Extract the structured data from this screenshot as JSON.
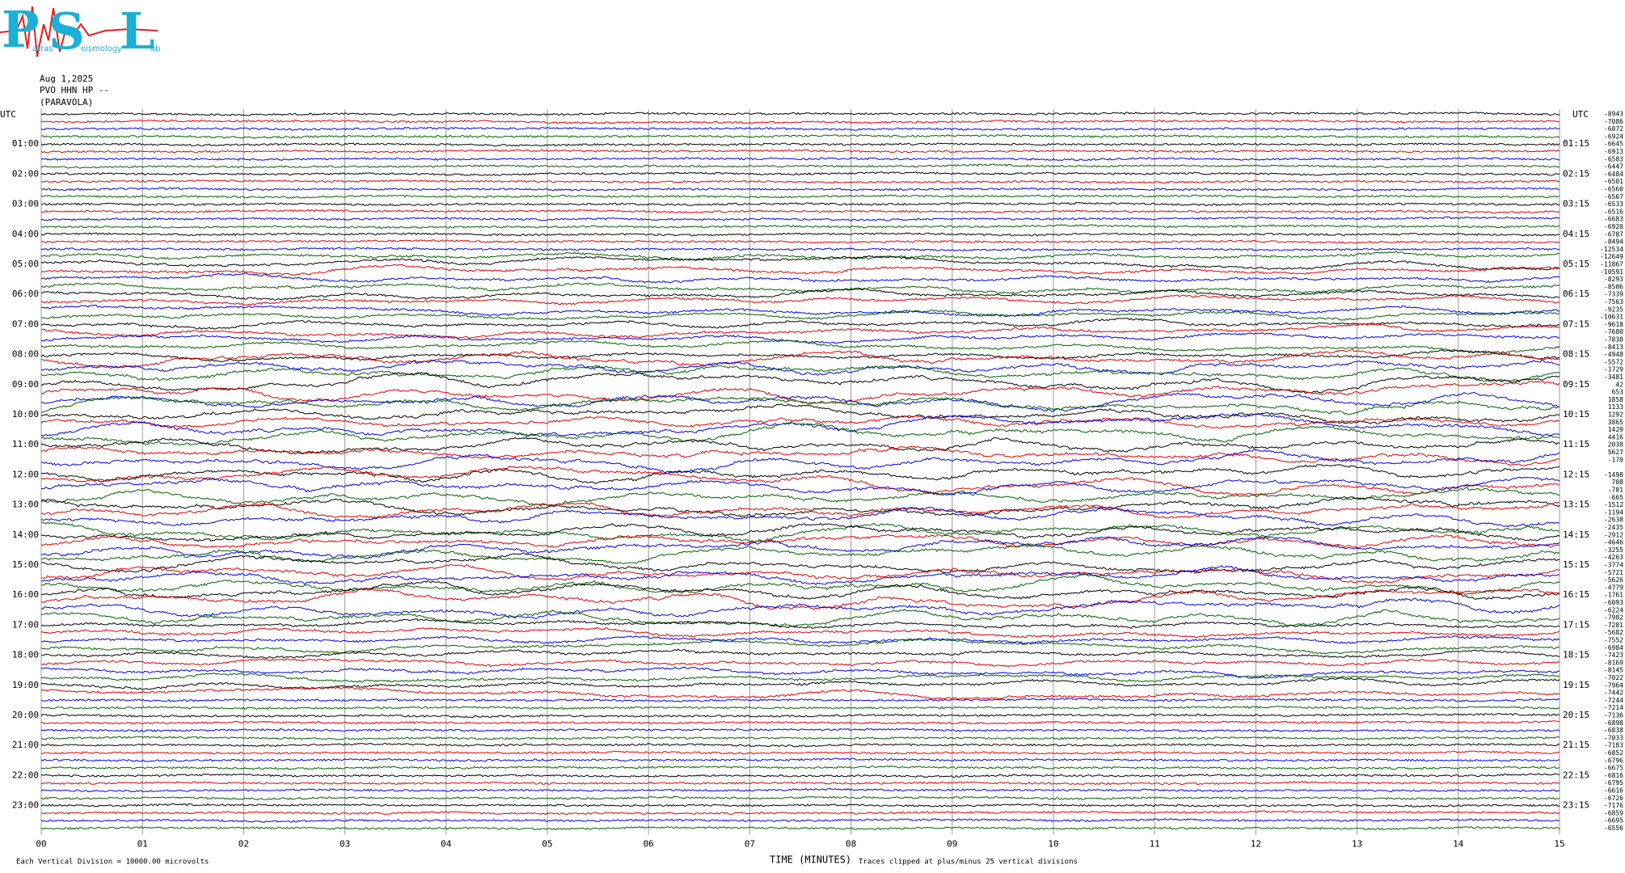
{
  "logo": {
    "letters": [
      "P",
      "S",
      "L"
    ],
    "words": [
      "atras",
      "eismology",
      "ab"
    ]
  },
  "header": {
    "date": "Aug 1,2025",
    "station": "PVO HHN HP --",
    "place": "(PARAVOLA)",
    "utc_left": "UTC",
    "utc_right": "UTC"
  },
  "left_labels": [
    "01:00",
    "02:00",
    "03:00",
    "04:00",
    "05:00",
    "06:00",
    "07:00",
    "08:00",
    "09:00",
    "10:00",
    "11:00",
    "12:00",
    "13:00",
    "14:00",
    "15:00",
    "16:00",
    "17:00",
    "18:00",
    "19:00",
    "20:00",
    "21:00",
    "22:00",
    "23:00"
  ],
  "right_labels": [
    "01:15",
    "02:15",
    "03:15",
    "04:15",
    "05:15",
    "06:15",
    "07:15",
    "08:15",
    "09:15",
    "10:15",
    "11:15",
    "12:15",
    "13:15",
    "14:15",
    "15:15",
    "16:15",
    "17:15",
    "18:15",
    "19:15",
    "20:15",
    "21:15",
    "22:15",
    "23:15"
  ],
  "offsets": [
    -8943,
    -7086,
    -6872,
    -6924,
    -6645,
    -6913,
    -6583,
    -6447,
    -6484,
    -6501,
    -6560,
    -6567,
    -6533,
    -6516,
    -6683,
    -6920,
    -6787,
    -8494,
    -12534,
    -12649,
    -11867,
    -10591,
    -8293,
    -8506,
    -7339,
    -7563,
    -9235,
    -10631,
    -9618,
    -7680,
    -7838,
    -8413,
    -4948,
    -5572,
    -1729,
    -3481,
    42,
    653,
    1858,
    1133,
    1292,
    3865,
    1429,
    4416,
    2038,
    5627,
    -170,
    null,
    -1498,
    708,
    -781,
    -665,
    -1512,
    -1194,
    -2638,
    -2435,
    -2912,
    -4646,
    -3255,
    -4263,
    -3774,
    -5721,
    -5626,
    -4779,
    -1761,
    -6093,
    -6224,
    -7982,
    -7281,
    -5682,
    -7552,
    -6984,
    -7423,
    -8169,
    -8145,
    -7022,
    -7964,
    -7442,
    -7244,
    -7214,
    -7136,
    -6898,
    -6838,
    -7033,
    -7183,
    -6852,
    -6796,
    -6675,
    -6816,
    -6795,
    -6616,
    -6726,
    -7176,
    -6859,
    -6695,
    -6556
  ],
  "x_ticks": [
    "00",
    "01",
    "02",
    "03",
    "04",
    "05",
    "06",
    "07",
    "08",
    "09",
    "10",
    "11",
    "12",
    "13",
    "14",
    "15"
  ],
  "footer": {
    "division": "Each Vertical Division = 10000.00 microvolts",
    "axis": "TIME (MINUTES)",
    "clip": "Traces clipped at plus/minus 25 vertical divisions"
  },
  "trace_colors": [
    "#000000",
    "#e00000",
    "#0000e0",
    "#006000"
  ]
}
